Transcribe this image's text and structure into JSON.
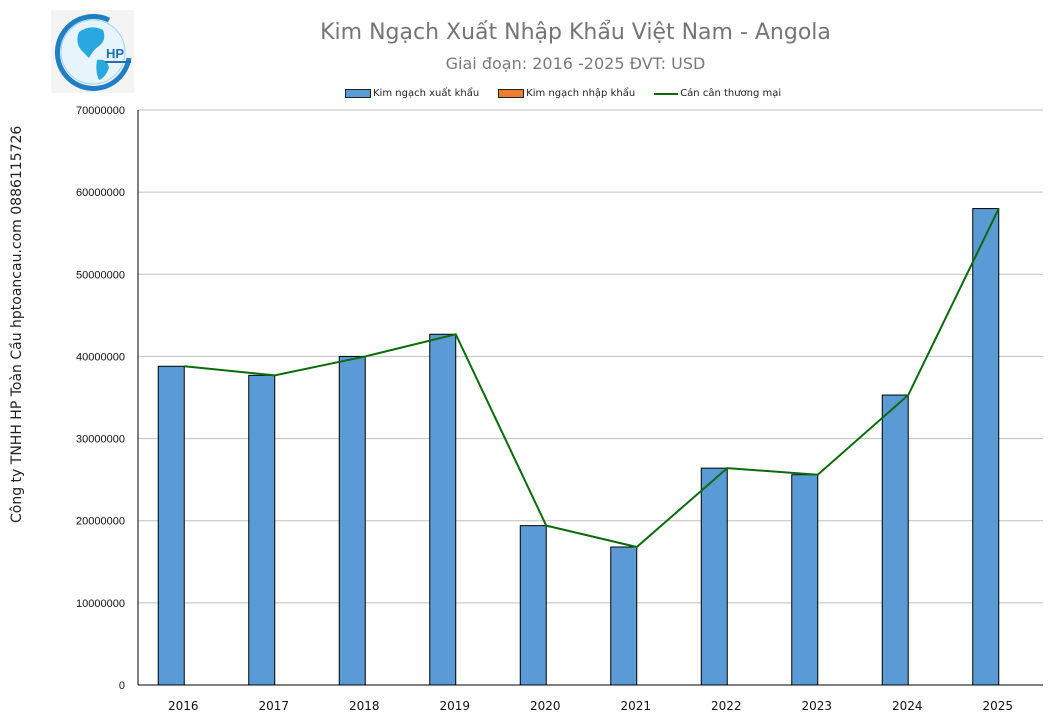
{
  "header": {
    "title": "Kim Ngạch Xuất Nhập Khẩu Việt Nam - Angola",
    "subtitle": "Giai đoạn: 2016 -2025  ĐVT: USD",
    "logo_text": "HP"
  },
  "legend": {
    "items": [
      {
        "label": "Kim ngạch xuất khẩu",
        "color": "#5b9bd5",
        "kind": "bar"
      },
      {
        "label": "Kim ngạch nhập khẩu",
        "color": "#ed7d31",
        "kind": "bar"
      },
      {
        "label": "Cán cân thương mại",
        "color": "#0b6a0b",
        "kind": "line"
      }
    ]
  },
  "side_label": "Công ty TNHH HP Toàn Cầu hptoancau.com 0886115726",
  "colors": {
    "export": "#5b9bd5",
    "import": "#ed7d31",
    "balance": "#0b6a0b",
    "grid": "#bfbfbf",
    "axis": "#000000"
  },
  "chart_data": {
    "type": "bar",
    "title": "Kim Ngạch Xuất Nhập Khẩu Việt Nam - Angola",
    "subtitle": "Giai đoạn: 2016 -2025  ĐVT: USD",
    "xlabel": "",
    "ylabel": "",
    "categories": [
      "2016",
      "2017",
      "2018",
      "2019",
      "2020",
      "2021",
      "2022",
      "2023",
      "2024",
      "2025"
    ],
    "series": [
      {
        "name": "Kim ngạch xuất khẩu",
        "type": "bar",
        "color": "#5b9bd5",
        "values": [
          38800000,
          37700000,
          40000000,
          42700000,
          19400000,
          16800000,
          26400000,
          25600000,
          35300000,
          58000000
        ]
      },
      {
        "name": "Kim ngạch nhập khẩu",
        "type": "bar",
        "color": "#ed7d31",
        "values": [
          0,
          0,
          0,
          0,
          0,
          0,
          0,
          0,
          0,
          0
        ]
      },
      {
        "name": "Cán cân thương mại",
        "type": "line",
        "color": "#0b6a0b",
        "values": [
          38800000,
          37700000,
          40000000,
          42700000,
          19400000,
          16800000,
          26400000,
          25600000,
          35300000,
          58000000
        ]
      }
    ],
    "ylim": [
      0,
      70000000
    ],
    "yticks": [
      0,
      10000000,
      20000000,
      30000000,
      40000000,
      50000000,
      60000000,
      70000000
    ],
    "grid": true,
    "legend_position": "top"
  }
}
